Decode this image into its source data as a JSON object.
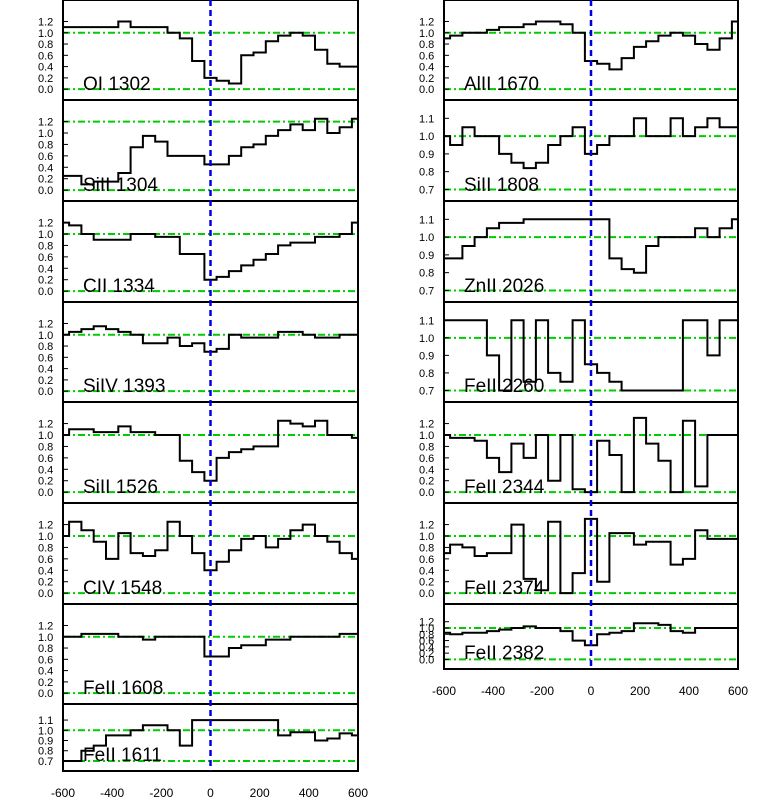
{
  "chart_data": {
    "type": "line",
    "layout": "two columns of stacked step-plot panels sharing velocity axes",
    "style": {
      "spectrum_color": "#000000",
      "reference_line_color": "#00cc00",
      "zero_velocity_line_color": "#0000dd",
      "reference_line_style": "dash-dot",
      "zero_velocity_line_style": "dashed"
    },
    "x_axis": {
      "range": [
        -600,
        600
      ],
      "ticks": [
        "-600",
        "-400",
        "-200",
        "0",
        "200",
        "400",
        "600"
      ]
    },
    "zero_velocity": 0,
    "bin_centers": [
      -600,
      -550,
      -500,
      -450,
      -400,
      -350,
      -300,
      -250,
      -200,
      -150,
      -100,
      -50,
      0,
      50,
      100,
      150,
      200,
      250,
      300,
      350,
      400,
      450,
      500,
      550,
      600
    ],
    "columns": [
      {
        "panels": [
          {
            "label": "OI 1302",
            "ylim": [
              -0.05,
              1.35
            ],
            "reference_levels": [
              0.0,
              1.0
            ],
            "ytick_labels": [
              "0.0",
              "0.2",
              "0.4",
              "0.6",
              "0.8",
              "1.0",
              "1.2"
            ],
            "values": [
              1.1,
              1.1,
              1.1,
              1.1,
              1.1,
              1.2,
              1.1,
              1.1,
              1.1,
              1.0,
              0.9,
              0.5,
              0.2,
              0.15,
              0.1,
              0.6,
              0.65,
              0.85,
              0.95,
              1.0,
              0.95,
              0.7,
              0.45,
              0.4,
              0.4
            ]
          },
          {
            "label": "SiII 1304",
            "ylim": [
              -0.05,
              1.35
            ],
            "reference_levels": [
              0.0,
              1.2
            ],
            "ytick_labels": [
              "0.0",
              "0.2",
              "0.4",
              "0.6",
              "0.8",
              "1.0",
              "1.2"
            ],
            "values": [
              0.25,
              0.25,
              0.1,
              0.15,
              0.15,
              0.3,
              0.75,
              0.95,
              0.85,
              0.6,
              0.6,
              0.6,
              0.45,
              0.45,
              0.6,
              0.75,
              0.8,
              0.95,
              1.05,
              1.15,
              1.05,
              1.25,
              1.0,
              1.1,
              1.25
            ]
          },
          {
            "label": "CII 1334",
            "ylim": [
              -0.05,
              1.35
            ],
            "reference_levels": [
              0.0,
              1.0
            ],
            "ytick_labels": [
              "0.0",
              "0.2",
              "0.4",
              "0.6",
              "0.8",
              "1.0",
              "1.2"
            ],
            "values": [
              1.2,
              1.15,
              1.0,
              0.9,
              0.9,
              0.9,
              1.0,
              1.0,
              0.95,
              0.95,
              0.65,
              0.65,
              0.2,
              0.25,
              0.35,
              0.45,
              0.55,
              0.65,
              0.8,
              0.85,
              0.85,
              0.95,
              0.95,
              1.0,
              1.2
            ]
          },
          {
            "label": "SiIV 1393",
            "ylim": [
              -0.05,
              1.35
            ],
            "reference_levels": [
              0.0,
              1.0
            ],
            "ytick_labels": [
              "0.0",
              "0.2",
              "0.4",
              "0.6",
              "0.8",
              "1.0",
              "1.2"
            ],
            "values": [
              1.0,
              1.05,
              1.1,
              1.15,
              1.1,
              1.05,
              1.0,
              0.85,
              0.85,
              0.95,
              0.8,
              0.85,
              0.7,
              0.75,
              1.0,
              0.95,
              0.95,
              0.95,
              1.05,
              1.05,
              1.0,
              0.95,
              0.95,
              1.0,
              1.0
            ]
          },
          {
            "label": "SiII 1526",
            "ylim": [
              -0.05,
              1.35
            ],
            "reference_levels": [
              0.0,
              1.0
            ],
            "ytick_labels": [
              "0.0",
              "0.2",
              "0.4",
              "0.6",
              "0.8",
              "1.0",
              "1.2"
            ],
            "values": [
              1.0,
              1.1,
              1.1,
              1.05,
              1.05,
              1.15,
              1.05,
              1.05,
              1.0,
              1.0,
              0.55,
              0.35,
              0.2,
              0.6,
              0.7,
              0.75,
              0.8,
              0.8,
              1.25,
              1.2,
              1.15,
              1.25,
              1.0,
              1.0,
              0.95
            ]
          },
          {
            "label": "CIV 1548",
            "ylim": [
              -0.05,
              1.35
            ],
            "reference_levels": [
              0.0,
              1.0
            ],
            "ytick_labels": [
              "0.0",
              "0.2",
              "0.4",
              "0.6",
              "0.8",
              "1.0",
              "1.2"
            ],
            "values": [
              1.0,
              1.25,
              1.1,
              0.9,
              0.6,
              1.05,
              0.7,
              0.65,
              0.75,
              1.25,
              1.0,
              0.7,
              0.4,
              0.55,
              0.75,
              0.95,
              1.0,
              0.8,
              0.95,
              1.1,
              1.2,
              1.0,
              0.9,
              0.7,
              0.6
            ]
          },
          {
            "label": "FeII 1608",
            "ylim": [
              -0.05,
              1.35
            ],
            "reference_levels": [
              0.0,
              1.0
            ],
            "ytick_labels": [
              "0.0",
              "0.2",
              "0.4",
              "0.6",
              "0.8",
              "1.0",
              "1.2"
            ],
            "values": [
              1.0,
              1.0,
              1.05,
              1.05,
              1.05,
              1.0,
              1.0,
              0.95,
              1.0,
              1.0,
              1.0,
              1.0,
              0.65,
              0.65,
              0.8,
              0.85,
              0.85,
              0.95,
              0.95,
              1.0,
              1.0,
              1.0,
              1.0,
              1.05,
              1.05
            ]
          },
          {
            "label": "FeII 1611",
            "ylim": [
              0.68,
              1.13
            ],
            "reference_levels": [
              0.7,
              1.0
            ],
            "ytick_labels": [
              "0.7",
              "0.8",
              "0.9",
              "1.0",
              "1.1"
            ],
            "values": [
              0.7,
              0.7,
              0.8,
              0.85,
              0.95,
              0.95,
              1.0,
              1.05,
              1.05,
              1.0,
              0.85,
              1.1,
              1.1,
              1.1,
              1.1,
              1.1,
              1.1,
              1.1,
              0.95,
              0.98,
              0.98,
              0.9,
              0.92,
              0.97,
              0.95
            ]
          }
        ]
      },
      {
        "panels": [
          {
            "label": "AlII 1670",
            "ylim": [
              -0.05,
              1.35
            ],
            "reference_levels": [
              0.0,
              1.0
            ],
            "ytick_labels": [
              "0.0",
              "0.2",
              "0.4",
              "0.6",
              "0.8",
              "1.0",
              "1.2"
            ],
            "values": [
              0.9,
              0.95,
              1.0,
              1.0,
              1.05,
              1.1,
              1.1,
              1.15,
              1.2,
              1.2,
              1.15,
              1.0,
              0.5,
              0.45,
              0.35,
              0.55,
              0.75,
              0.85,
              0.95,
              1.0,
              0.95,
              0.8,
              0.7,
              0.9,
              1.2
            ]
          },
          {
            "label": "SiII 1808",
            "ylim": [
              0.68,
              1.13
            ],
            "reference_levels": [
              0.7,
              1.0
            ],
            "ytick_labels": [
              "0.7",
              "0.8",
              "0.9",
              "1.0",
              "1.1"
            ],
            "values": [
              1.0,
              0.95,
              1.05,
              1.0,
              1.0,
              0.9,
              0.85,
              0.82,
              0.85,
              0.95,
              1.0,
              1.05,
              0.9,
              0.95,
              1.0,
              1.0,
              1.1,
              1.0,
              1.0,
              1.1,
              1.0,
              1.05,
              1.1,
              1.05,
              1.05
            ]
          },
          {
            "label": "ZnII 2026",
            "ylim": [
              0.68,
              1.13
            ],
            "reference_levels": [
              0.7,
              1.0
            ],
            "ytick_labels": [
              "0.7",
              "0.8",
              "0.9",
              "1.0",
              "1.1"
            ],
            "values": [
              0.88,
              0.88,
              0.95,
              1.0,
              1.05,
              1.08,
              1.08,
              1.1,
              1.1,
              1.1,
              1.1,
              1.1,
              1.1,
              1.1,
              0.88,
              0.82,
              0.8,
              0.95,
              1.0,
              1.0,
              1.0,
              1.05,
              1.0,
              1.05,
              1.1
            ]
          },
          {
            "label": "FeII 2260",
            "ylim": [
              0.68,
              1.13
            ],
            "reference_levels": [
              0.7,
              1.0
            ],
            "ytick_labels": [
              "0.7",
              "0.8",
              "0.9",
              "1.0",
              "1.1"
            ],
            "values": [
              1.1,
              1.1,
              1.1,
              1.1,
              0.9,
              0.7,
              1.1,
              0.75,
              1.1,
              0.8,
              0.75,
              1.1,
              0.85,
              0.8,
              0.75,
              0.7,
              0.7,
              0.7,
              0.7,
              0.7,
              1.1,
              1.1,
              0.9,
              1.1,
              1.1
            ]
          },
          {
            "label": "FeII 2344",
            "ylim": [
              -0.05,
              1.35
            ],
            "reference_levels": [
              0.0,
              1.0
            ],
            "ytick_labels": [
              "0.0",
              "0.2",
              "0.4",
              "0.6",
              "0.8",
              "1.0",
              "1.2"
            ],
            "values": [
              1.0,
              0.95,
              0.95,
              0.9,
              0.6,
              0.35,
              0.85,
              0.6,
              1.0,
              0.2,
              1.0,
              0.05,
              0.0,
              0.9,
              0.65,
              0.0,
              1.3,
              0.85,
              0.55,
              0.0,
              1.25,
              0.1,
              1.0,
              1.0,
              1.0
            ]
          },
          {
            "label": "FeII 2374",
            "ylim": [
              -0.05,
              1.35
            ],
            "reference_levels": [
              0.0,
              1.0
            ],
            "ytick_labels": [
              "0.0",
              "0.2",
              "0.4",
              "0.6",
              "0.8",
              "1.0",
              "1.2"
            ],
            "values": [
              0.7,
              0.85,
              0.8,
              0.65,
              0.7,
              0.7,
              1.2,
              0.25,
              0.05,
              1.25,
              0.0,
              0.35,
              1.3,
              0.2,
              1.05,
              1.05,
              0.85,
              0.9,
              0.9,
              0.5,
              0.6,
              1.1,
              0.95,
              0.95,
              0.95
            ]
          },
          {
            "label": "FeII 2382",
            "ylim": [
              -0.05,
              1.35
            ],
            "reference_levels": [
              0.0,
              1.0
            ],
            "ytick_labels": [
              "0.0",
              "0.2",
              "0.4",
              "0.6",
              "0.8",
              "1.0",
              "1.2"
            ],
            "values": [
              0.85,
              0.8,
              0.85,
              0.85,
              0.9,
              0.95,
              1.0,
              1.05,
              1.0,
              1.0,
              0.9,
              0.6,
              0.45,
              0.8,
              0.85,
              0.9,
              1.15,
              1.15,
              1.1,
              0.9,
              0.85,
              1.0,
              1.0,
              1.0,
              1.0
            ]
          }
        ]
      }
    ]
  }
}
